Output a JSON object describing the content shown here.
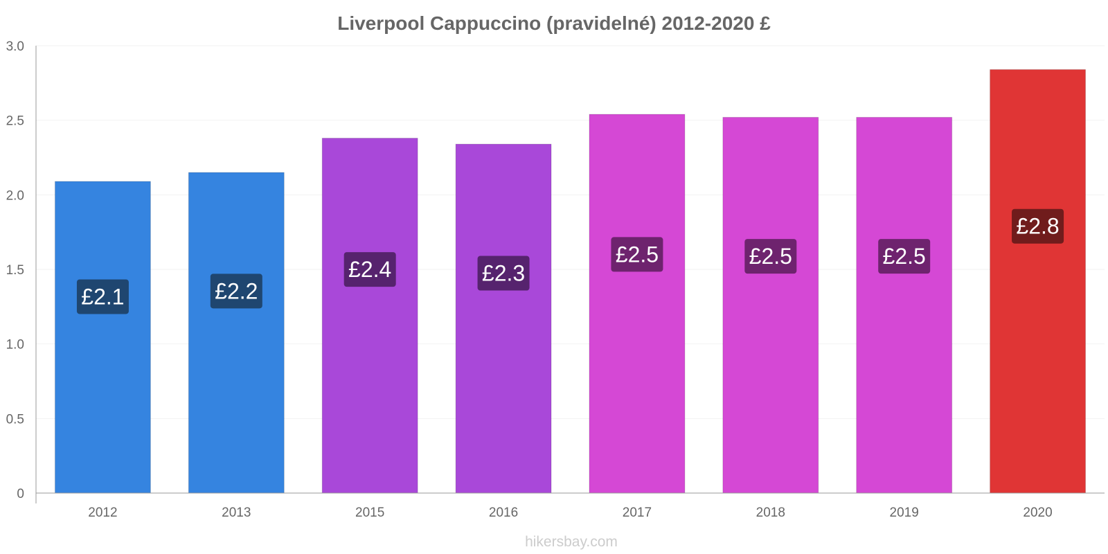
{
  "chart_data": {
    "type": "bar",
    "title": "Liverpool Cappuccino (pravidelné) 2012-2020 £",
    "xlabel": "",
    "ylabel": "",
    "categories": [
      "2012",
      "2013",
      "2015",
      "2016",
      "2017",
      "2018",
      "2019",
      "2020"
    ],
    "values": [
      2.09,
      2.15,
      2.38,
      2.34,
      2.54,
      2.52,
      2.52,
      2.84
    ],
    "data_labels": [
      "£2.1",
      "£2.2",
      "£2.4",
      "£2.3",
      "£2.5",
      "£2.5",
      "£2.5",
      "£2.8"
    ],
    "bar_colors": [
      "#3584e0",
      "#3584e0",
      "#a948d9",
      "#a948d9",
      "#d548d5",
      "#d548d5",
      "#d548d5",
      "#e03535"
    ],
    "label_bg_colors": [
      "#1f4670",
      "#1f4670",
      "#56236e",
      "#56236e",
      "#6e236e",
      "#6e236e",
      "#6e236e",
      "#701c1c"
    ],
    "ylim": [
      0,
      3.0
    ],
    "yticks": [
      "0",
      "0.5",
      "1.0",
      "1.5",
      "2.0",
      "2.5",
      "3.0"
    ],
    "ytick_values": [
      0,
      0.5,
      1.0,
      1.5,
      2.0,
      2.5,
      3.0
    ],
    "grid": true,
    "legend": "none"
  },
  "watermark": "hikersbay.com"
}
